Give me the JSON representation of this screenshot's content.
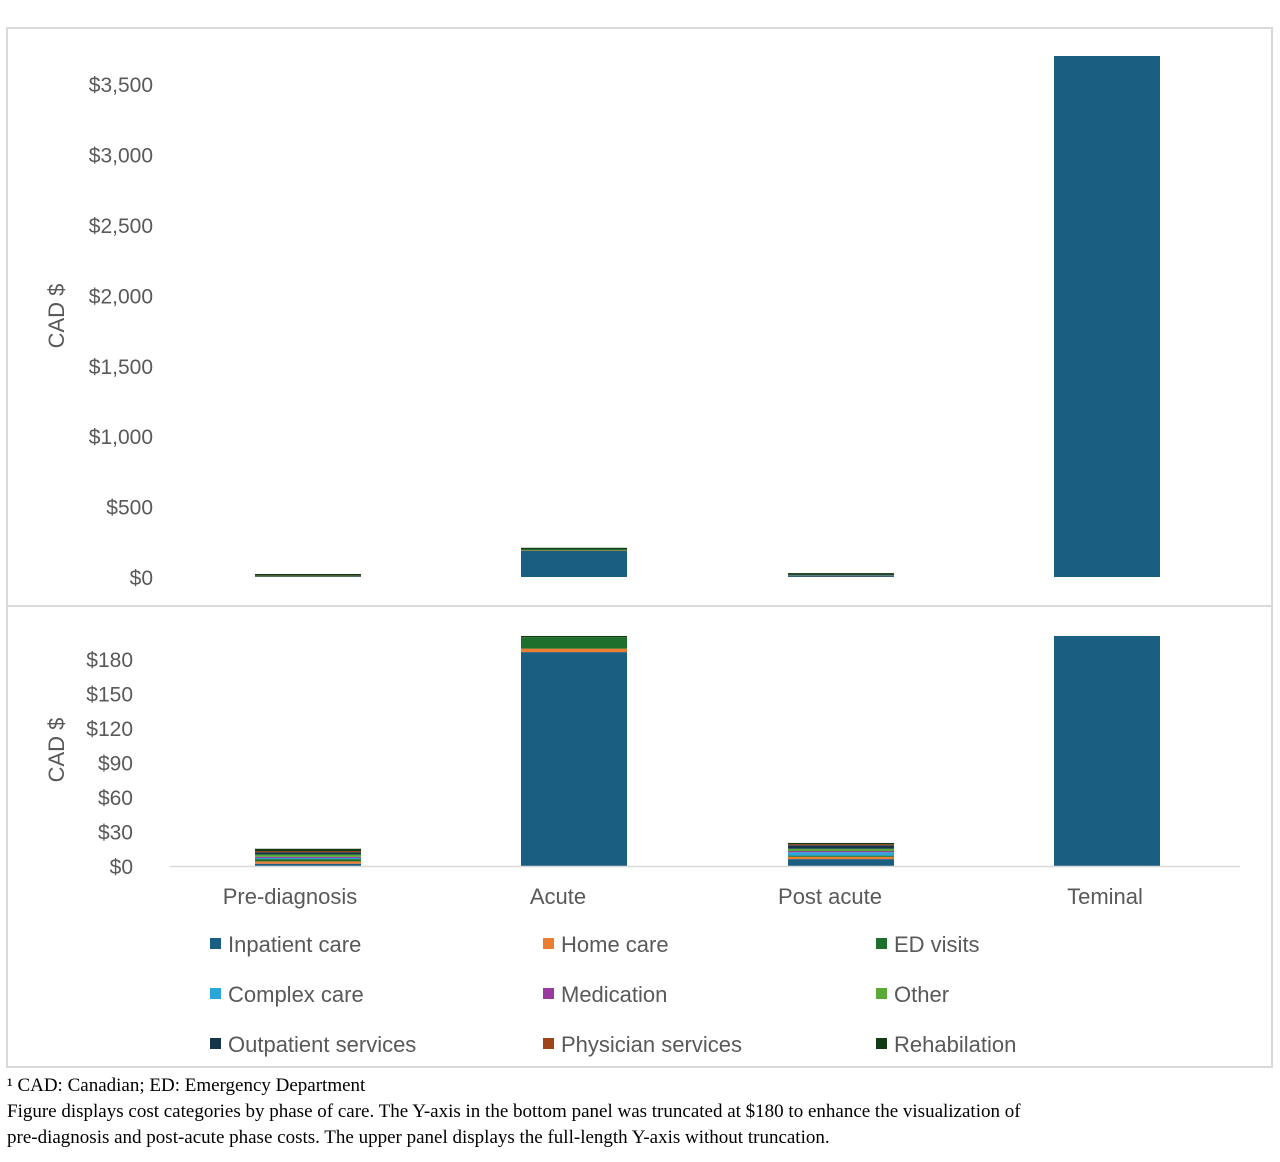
{
  "chart_data": {
    "type": "bar",
    "stacked": true,
    "categories": [
      "Pre-diagnosis",
      "Acute",
      "Post acute",
      "Teminal"
    ],
    "series": [
      {
        "name": "Inpatient care",
        "color": "#1a5e82",
        "values": [
          2,
          186,
          6,
          3700
        ]
      },
      {
        "name": "Home care",
        "color": "#ed7d31",
        "values": [
          2,
          3,
          2,
          0
        ]
      },
      {
        "name": "ED visits",
        "color": "#1e6e2c",
        "values": [
          2,
          10,
          1,
          0
        ]
      },
      {
        "name": "Complex care",
        "color": "#2aa6d8",
        "values": [
          1,
          0,
          3,
          0
        ]
      },
      {
        "name": "Medication",
        "color": "#9b3a9e",
        "values": [
          1,
          0,
          1,
          0
        ]
      },
      {
        "name": "Other",
        "color": "#5aaa3a",
        "values": [
          2,
          0,
          2,
          0
        ]
      },
      {
        "name": "Outpatient services",
        "color": "#14354a",
        "values": [
          2,
          0,
          3,
          0
        ]
      },
      {
        "name": "Physician  services",
        "color": "#9e4419",
        "values": [
          1,
          0,
          1,
          0
        ]
      },
      {
        "name": "Rehabilation",
        "color": "#123b16",
        "values": [
          2,
          1,
          1,
          0
        ]
      }
    ],
    "panels": [
      {
        "id": "upper",
        "ylabel": "CAD $",
        "ylim": [
          0,
          3700
        ],
        "ytick_values": [
          0,
          500,
          1000,
          1500,
          2000,
          2500,
          3000,
          3500
        ],
        "yticks": [
          "$0",
          "$500",
          "$1,000",
          "$1,500",
          "$2,000",
          "$2,500",
          "$3,000",
          "$3,500"
        ],
        "truncated": false
      },
      {
        "id": "lower",
        "ylabel": "CAD $",
        "ylim": [
          0,
          200
        ],
        "ytick_values": [
          0,
          30,
          60,
          90,
          120,
          150,
          180
        ],
        "yticks": [
          "$0",
          "$30",
          "$60",
          "$90",
          "$120",
          "$150",
          "$180"
        ],
        "truncated": true
      }
    ],
    "legend_placement": "bottom",
    "grid": false
  },
  "footnotes": [
    "¹ CAD: Canadian; ED: Emergency Department",
    "Figure displays cost categories by phase of care. The Y-axis in the bottom panel was truncated at $180 to enhance the visualization of",
    "pre-diagnosis and post-acute phase costs. The upper panel displays the full-length Y-axis without truncation."
  ]
}
